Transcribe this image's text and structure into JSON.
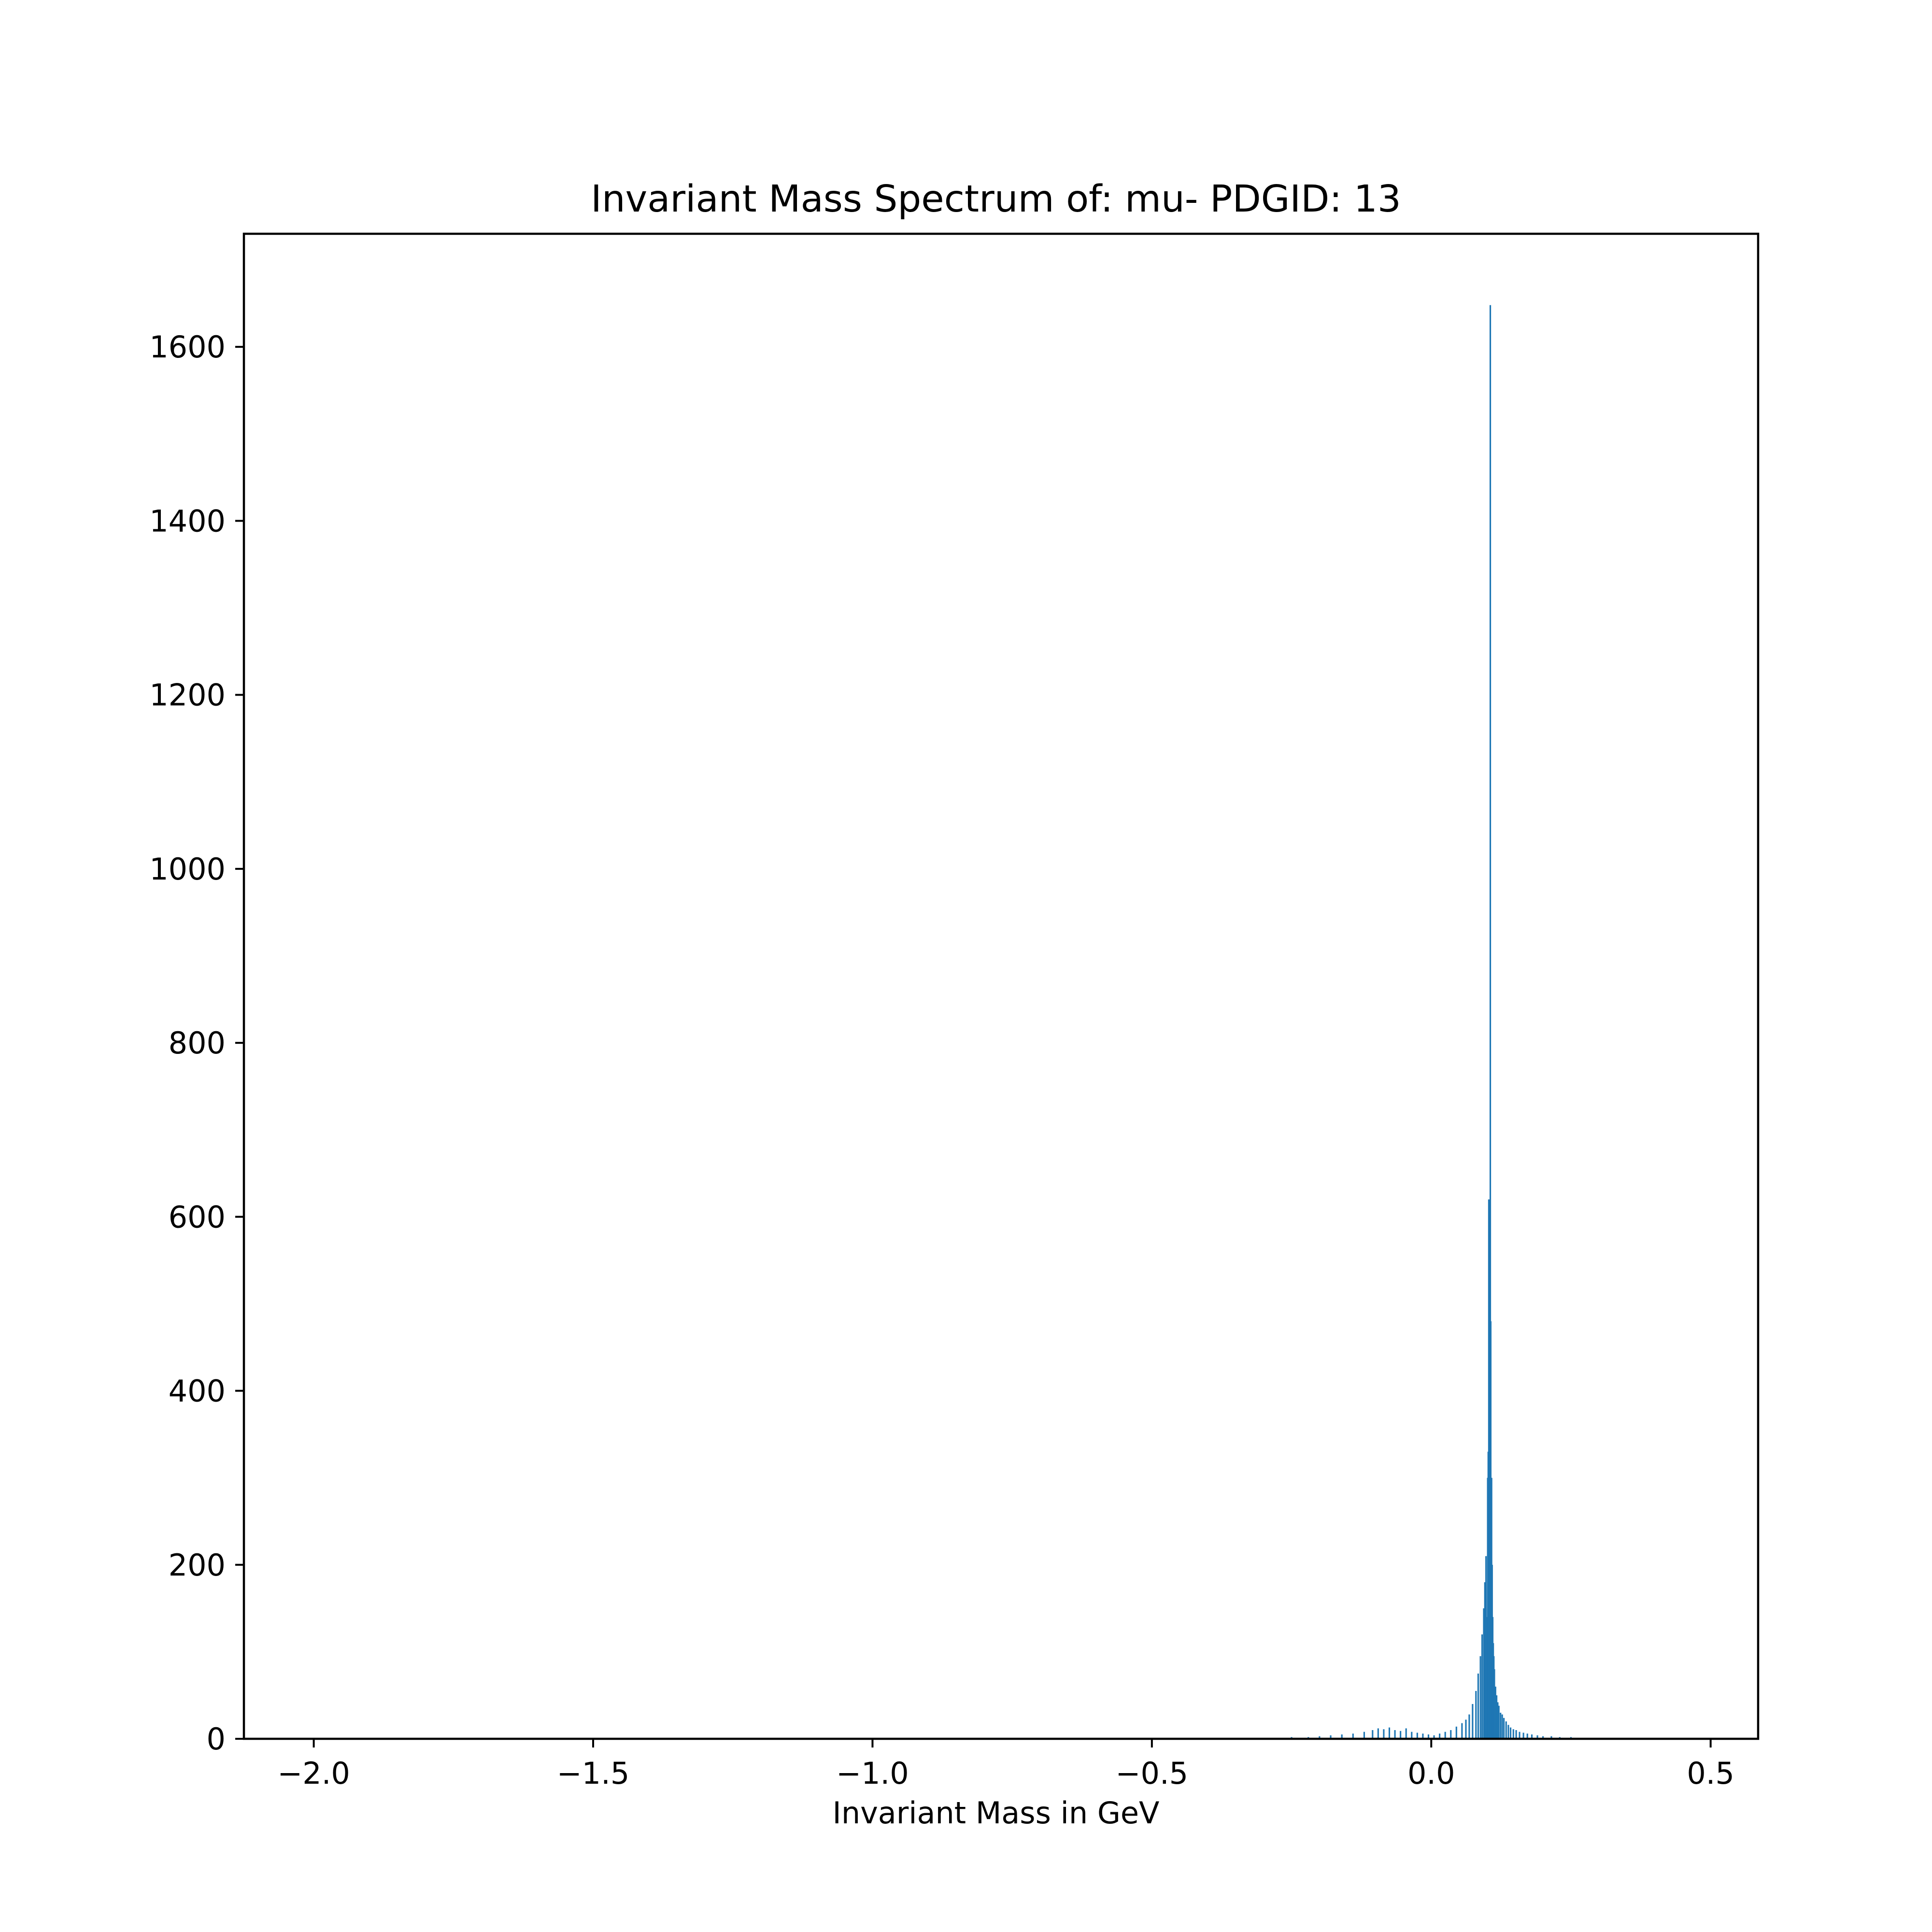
{
  "chart_data": {
    "type": "bar",
    "title": "Invariant Mass Spectrum of: mu- PDGID: 13",
    "xlabel": "Invariant Mass in GeV",
    "ylabel": "",
    "xlim": [
      -2.125,
      0.585
    ],
    "ylim": [
      0,
      1730
    ],
    "x_ticks": [
      -2.0,
      -1.5,
      -1.0,
      -0.5,
      0.0,
      0.5
    ],
    "x_tick_labels": [
      "−2.0",
      "−1.5",
      "−1.0",
      "−0.5",
      "0.0",
      "0.5"
    ],
    "y_ticks": [
      0,
      200,
      400,
      600,
      800,
      1000,
      1200,
      1400,
      1600
    ],
    "y_tick_labels": [
      "0",
      "200",
      "400",
      "600",
      "800",
      "1000",
      "1200",
      "1400",
      "1600"
    ],
    "grid": false,
    "bar_color": "#1f77b4",
    "bin_width": 0.00271,
    "x": [
      -0.31,
      -0.28,
      -0.25,
      -0.22,
      -0.2,
      -0.18,
      -0.16,
      -0.14,
      -0.12,
      -0.105,
      -0.095,
      -0.085,
      -0.075,
      -0.065,
      -0.055,
      -0.045,
      -0.035,
      -0.025,
      -0.015,
      -0.005,
      0.005,
      0.015,
      0.025,
      0.035,
      0.045,
      0.055,
      0.062,
      0.068,
      0.074,
      0.08,
      0.084,
      0.088,
      0.091,
      0.094,
      0.096,
      0.098,
      0.1,
      0.101,
      0.102,
      0.103,
      0.104,
      0.105,
      0.1057,
      0.1065,
      0.107,
      0.108,
      0.109,
      0.11,
      0.111,
      0.112,
      0.113,
      0.115,
      0.117,
      0.119,
      0.121,
      0.124,
      0.127,
      0.13,
      0.134,
      0.138,
      0.142,
      0.147,
      0.152,
      0.158,
      0.165,
      0.172,
      0.18,
      0.19,
      0.2,
      0.215,
      0.23,
      0.25,
      0.27,
      0.3,
      0.34,
      0.38
    ],
    "values": [
      1,
      1,
      2,
      2,
      3,
      4,
      5,
      6,
      8,
      10,
      12,
      11,
      13,
      10,
      9,
      12,
      8,
      7,
      6,
      5,
      4,
      6,
      8,
      10,
      14,
      18,
      22,
      28,
      40,
      55,
      75,
      95,
      120,
      150,
      180,
      210,
      140,
      300,
      330,
      620,
      600,
      450,
      1648,
      480,
      260,
      300,
      200,
      140,
      110,
      95,
      80,
      60,
      50,
      42,
      38,
      30,
      28,
      24,
      20,
      16,
      13,
      11,
      10,
      8,
      7,
      6,
      5,
      4,
      3,
      3,
      2,
      2,
      1,
      1,
      1,
      1
    ]
  }
}
